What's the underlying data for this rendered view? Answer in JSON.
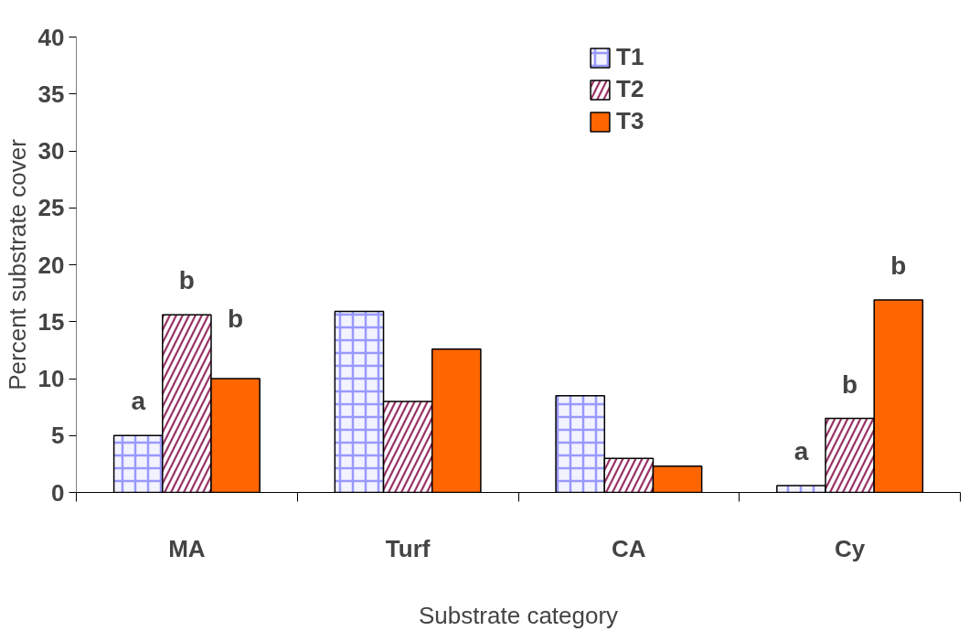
{
  "chart_data": {
    "type": "bar",
    "xlabel": "Substrate category",
    "ylabel": "Percent substrate cover",
    "categories": [
      "MA",
      "Turf",
      "CA",
      "Cy"
    ],
    "series": [
      {
        "name": "T1",
        "color": "#9999ff",
        "values": [
          5.0,
          15.9,
          8.5,
          0.6
        ]
      },
      {
        "name": "T2",
        "color": "#993366",
        "values": [
          15.6,
          8.0,
          3.0,
          6.5
        ]
      },
      {
        "name": "T3",
        "color": "#ff6600",
        "values": [
          10.0,
          12.6,
          2.3,
          16.9
        ]
      }
    ],
    "ylim": [
      0,
      40
    ],
    "yticks": [
      0,
      5,
      10,
      15,
      20,
      25,
      30,
      35,
      40
    ],
    "grid": false,
    "legend": "top right",
    "annotations": [
      "a",
      "b",
      "b",
      "a",
      "b",
      "b"
    ]
  }
}
